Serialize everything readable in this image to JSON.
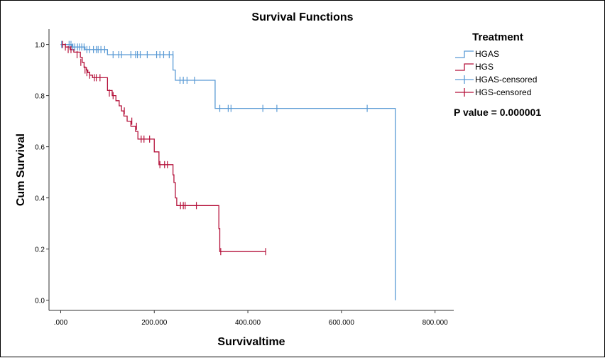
{
  "chart_data": {
    "type": "line",
    "subtype": "kaplan-meier-step",
    "title": "Survival Functions",
    "xlabel": "Survivaltime",
    "ylabel": "Cum Survival",
    "xlim": [
      -25,
      840
    ],
    "ylim": [
      -0.04,
      1.06
    ],
    "x_ticks": [
      0,
      200,
      400,
      600,
      800
    ],
    "x_tick_labels": [
      ".000",
      "200.000",
      "400.000",
      "600.000",
      "800.000"
    ],
    "y_ticks": [
      0.0,
      0.2,
      0.4,
      0.6,
      0.8,
      1.0
    ],
    "y_tick_labels": [
      "0.0",
      "0.2",
      "0.4",
      "0.6",
      "0.8",
      "1.0"
    ],
    "grid": false,
    "legend_title": "Treatment",
    "legend_position": "right",
    "annotation": "P value = 0.000001",
    "series": [
      {
        "name": "HGAS",
        "color": "#5B9BD5",
        "steps": [
          [
            0,
            1.0
          ],
          [
            24,
            0.99
          ],
          [
            52,
            0.98
          ],
          [
            100,
            0.96
          ],
          [
            240,
            0.9
          ],
          [
            245,
            0.86
          ],
          [
            330,
            0.75
          ],
          [
            715,
            0.75
          ],
          [
            715,
            0.0
          ]
        ],
        "end_x": 715
      },
      {
        "name": "HGS",
        "color": "#B5123B",
        "steps": [
          [
            0,
            1.0
          ],
          [
            10,
            0.99
          ],
          [
            20,
            0.98
          ],
          [
            28,
            0.97
          ],
          [
            42,
            0.95
          ],
          [
            46,
            0.93
          ],
          [
            50,
            0.91
          ],
          [
            55,
            0.9
          ],
          [
            58,
            0.89
          ],
          [
            62,
            0.88
          ],
          [
            68,
            0.87
          ],
          [
            100,
            0.82
          ],
          [
            110,
            0.8
          ],
          [
            118,
            0.78
          ],
          [
            125,
            0.76
          ],
          [
            130,
            0.74
          ],
          [
            135,
            0.72
          ],
          [
            142,
            0.7
          ],
          [
            150,
            0.68
          ],
          [
            160,
            0.66
          ],
          [
            165,
            0.63
          ],
          [
            200,
            0.58
          ],
          [
            210,
            0.53
          ],
          [
            240,
            0.49
          ],
          [
            242,
            0.46
          ],
          [
            245,
            0.4
          ],
          [
            248,
            0.37
          ],
          [
            338,
            0.28
          ],
          [
            340,
            0.19
          ],
          [
            438,
            0.19
          ]
        ],
        "end_x": 438
      }
    ],
    "censored": [
      {
        "name": "HGAS-censored",
        "color": "#5B9BD5",
        "x": [
          2,
          18,
          22,
          26,
          30,
          36,
          40,
          45,
          50,
          56,
          62,
          70,
          76,
          80,
          86,
          94,
          112,
          124,
          130,
          150,
          160,
          164,
          170,
          185,
          205,
          212,
          220,
          232,
          240,
          255,
          262,
          270,
          286,
          340,
          358,
          364,
          432,
          462,
          655
        ],
        "y": [
          1.0,
          1.0,
          1.0,
          0.99,
          0.99,
          0.99,
          0.99,
          0.99,
          0.99,
          0.98,
          0.98,
          0.98,
          0.98,
          0.98,
          0.98,
          0.98,
          0.96,
          0.96,
          0.96,
          0.96,
          0.96,
          0.96,
          0.96,
          0.96,
          0.96,
          0.96,
          0.96,
          0.96,
          0.96,
          0.86,
          0.86,
          0.86,
          0.86,
          0.75,
          0.75,
          0.75,
          0.75,
          0.75,
          0.75
        ]
      },
      {
        "name": "HGS-censored",
        "color": "#B5123B",
        "x": [
          4,
          10,
          16,
          22,
          35,
          43,
          52,
          56,
          62,
          72,
          76,
          84,
          104,
          112,
          136,
          152,
          162,
          172,
          178,
          190,
          212,
          222,
          228,
          256,
          262,
          266,
          290,
          342,
          438
        ],
        "y": [
          1.0,
          0.99,
          0.98,
          0.98,
          0.96,
          0.93,
          0.9,
          0.89,
          0.88,
          0.87,
          0.87,
          0.87,
          0.81,
          0.8,
          0.74,
          0.7,
          0.68,
          0.63,
          0.63,
          0.63,
          0.53,
          0.53,
          0.53,
          0.37,
          0.37,
          0.37,
          0.37,
          0.19,
          0.19
        ]
      }
    ]
  }
}
